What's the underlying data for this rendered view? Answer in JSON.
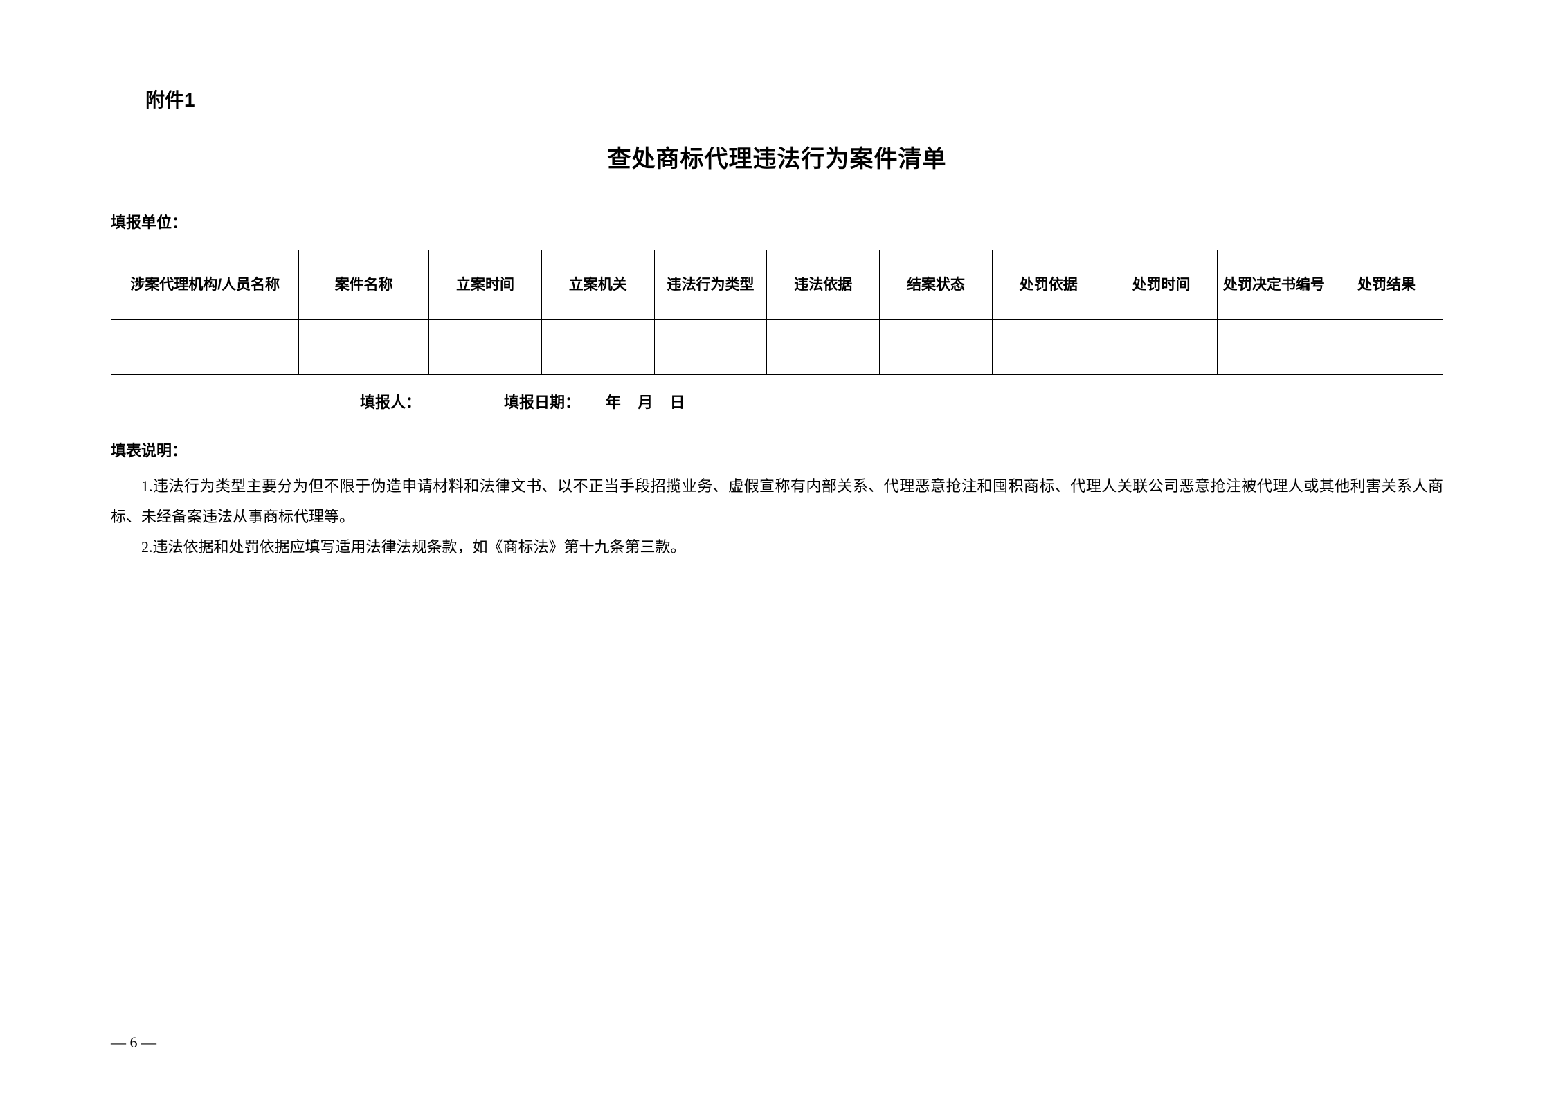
{
  "attachment_label": "附件1",
  "title": "查处商标代理违法行为案件清单",
  "reporting_unit_label": "填报单位：",
  "table": {
    "headers": [
      "涉案代理机构/人员名称",
      "案件名称",
      "立案时间",
      "立案机关",
      "违法行为类型",
      "违法依据",
      "结案状态",
      "处罚依据",
      "处罚时间",
      "处罚决定书编号",
      "处罚结果"
    ],
    "rows": [
      [
        "",
        "",
        "",
        "",
        "",
        "",
        "",
        "",
        "",
        "",
        ""
      ],
      [
        "",
        "",
        "",
        "",
        "",
        "",
        "",
        "",
        "",
        "",
        ""
      ]
    ]
  },
  "footer": {
    "reporter_label": "填报人：",
    "date_label": "填报日期：",
    "year": "年",
    "month": "月",
    "day": "日"
  },
  "instructions": {
    "title": "填表说明：",
    "item1_num": "1.",
    "item1": "违法行为类型主要分为但不限于伪造申请材料和法律文书、以不正当手段招揽业务、虚假宣称有内部关系、代理恶意抢注和囤积商标、代理人关联公司恶意抢注被代理人或其他利害关系人商标、未经备案违法从事商标代理等。",
    "item2_num": "2.",
    "item2": "违法依据和处罚依据应填写适用法律法规条款，如《商标法》第十九条第三款。"
  },
  "page_number": "— 6 —"
}
